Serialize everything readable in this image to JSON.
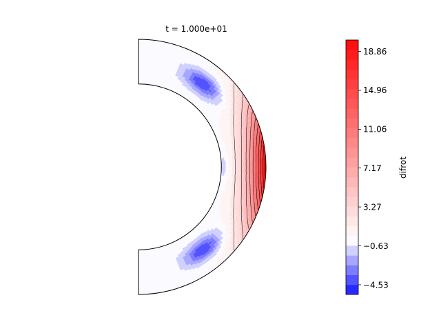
{
  "chart_data": {
    "type": "heatmap",
    "title": "t = 1.000e+01",
    "colorbar": {
      "label": "difrot",
      "vmin": -5.5,
      "vmax": 20.0,
      "levels": 26,
      "ticks": [
        -4.53,
        -0.63,
        3.27,
        7.17,
        11.06,
        14.96,
        18.86
      ],
      "tick_labels": [
        "−4.53",
        "−0.63",
        "3.27",
        "7.17",
        "11.06",
        "14.96",
        "18.86"
      ]
    },
    "geometry": {
      "plot": "meridional half-annulus",
      "inner_radius_fraction": 0.65,
      "theta_range_deg": [
        0,
        180
      ]
    },
    "field_features": [
      {
        "name": "equatorial prograde jet",
        "value": 20.0,
        "latitude_deg": 0,
        "location": "outer boundary"
      },
      {
        "name": "northern retrograde cell",
        "value": -4.5,
        "latitude_deg": 52,
        "location": "mid-shell"
      },
      {
        "name": "southern retrograde cell",
        "value": -4.5,
        "latitude_deg": -52,
        "location": "mid-shell"
      },
      {
        "name": "low-latitude inner retrograde patch",
        "value": -1.5,
        "latitude_deg": 0,
        "location": "inner shell"
      }
    ]
  }
}
